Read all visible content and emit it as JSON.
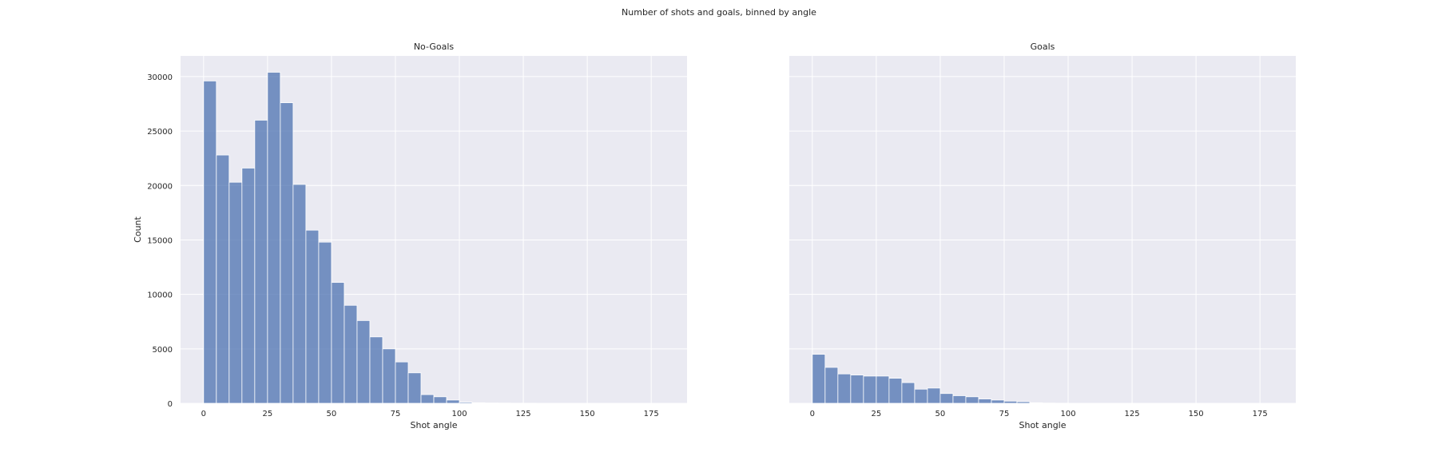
{
  "suptitle": "Number of shots and goals, binned by angle",
  "chart_data": [
    {
      "type": "bar",
      "title": "No-Goals",
      "xlabel": "Shot angle",
      "ylabel": "Count",
      "bin_width": 5,
      "bin_starts": [
        0,
        5,
        10,
        15,
        20,
        25,
        30,
        35,
        40,
        45,
        50,
        55,
        60,
        65,
        70,
        75,
        80,
        85,
        90,
        95,
        100,
        105,
        110,
        115,
        120,
        125,
        130,
        135,
        140,
        145,
        150,
        155,
        160,
        165,
        170,
        175
      ],
      "values": [
        29600,
        22800,
        20300,
        21600,
        26000,
        30400,
        27600,
        20100,
        15900,
        14800,
        11100,
        9000,
        7600,
        6100,
        5000,
        3800,
        2800,
        800,
        600,
        300,
        100,
        50,
        30,
        20,
        10,
        10,
        5,
        5,
        5,
        5,
        5,
        5,
        5,
        5,
        5,
        5
      ],
      "xlim": [
        -9,
        189
      ],
      "ylim": [
        0,
        31900
      ],
      "xticks": [
        0,
        25,
        50,
        75,
        100,
        125,
        150,
        175
      ],
      "yticks": [
        0,
        5000,
        10000,
        15000,
        20000,
        25000,
        30000
      ],
      "grid": true,
      "color": "#4c72b0"
    },
    {
      "type": "bar",
      "title": "Goals",
      "xlabel": "Shot angle",
      "ylabel": "",
      "bin_width": 5,
      "bin_starts": [
        0,
        5,
        10,
        15,
        20,
        25,
        30,
        35,
        40,
        45,
        50,
        55,
        60,
        65,
        70,
        75,
        80,
        85,
        90,
        95,
        100,
        105,
        110,
        115,
        120,
        125,
        130,
        135,
        140,
        145,
        150,
        155,
        160,
        165,
        170,
        175
      ],
      "values": [
        4500,
        3300,
        2700,
        2600,
        2500,
        2500,
        2300,
        1900,
        1300,
        1400,
        900,
        700,
        600,
        400,
        300,
        200,
        150,
        50,
        20,
        10,
        5,
        5,
        5,
        5,
        5,
        5,
        5,
        5,
        5,
        5,
        5,
        5,
        5,
        5,
        5,
        5
      ],
      "xlim": [
        -9,
        189
      ],
      "ylim": [
        0,
        31900
      ],
      "xticks": [
        0,
        25,
        50,
        75,
        100,
        125,
        150,
        175
      ],
      "yticks": [],
      "grid": true,
      "color": "#4c72b0"
    }
  ]
}
